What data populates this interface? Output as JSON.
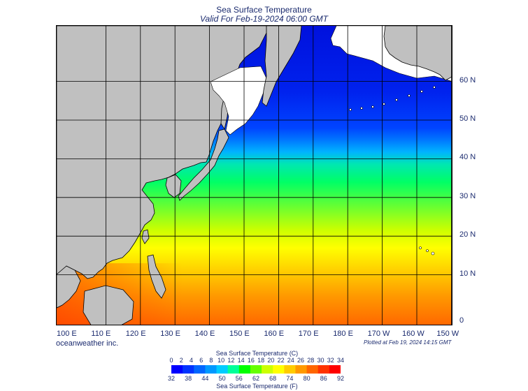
{
  "title": "Sea Surface Temperature",
  "subtitle": "Valid For Feb-19-2024 06:00 GMT",
  "credit": "oceanweather inc.",
  "plotted": "Plotted at Feb 19, 2024 14:15 GMT",
  "lon_labels": [
    "100 E",
    "110 E",
    "120 E",
    "130 E",
    "140 E",
    "150 E",
    "160 E",
    "170 E",
    "180 E",
    "170 W",
    "160 W",
    "150 W"
  ],
  "lat_labels": [
    "0",
    "10 N",
    "20 N",
    "30 N",
    "40 N",
    "50 N",
    "60 N"
  ],
  "colorbar": {
    "celsius_title": "Sea Surface Temperature (C)",
    "fahrenheit_title": "Sea Surface Temperature (F)",
    "celsius_ticks": [
      "0",
      "2",
      "4",
      "6",
      "8",
      "10",
      "12",
      "14",
      "16",
      "18",
      "20",
      "22",
      "24",
      "26",
      "28",
      "30",
      "32",
      "34"
    ],
    "fahrenheit_ticks": [
      "32",
      "38",
      "44",
      "50",
      "56",
      "62",
      "68",
      "74",
      "80",
      "86",
      "92"
    ]
  },
  "colors": {
    "land": "#c0c0c0",
    "ice": "#ffffff",
    "text": "#1a2a6e",
    "ramp": [
      "#0000ff",
      "#0033ff",
      "#0066ff",
      "#0099ff",
      "#00ccff",
      "#00ff99",
      "#00ff00",
      "#66ff00",
      "#ccff00",
      "#ffff00",
      "#ffcc00",
      "#ff9900",
      "#ff6600",
      "#ff3300",
      "#ff0000"
    ]
  }
}
